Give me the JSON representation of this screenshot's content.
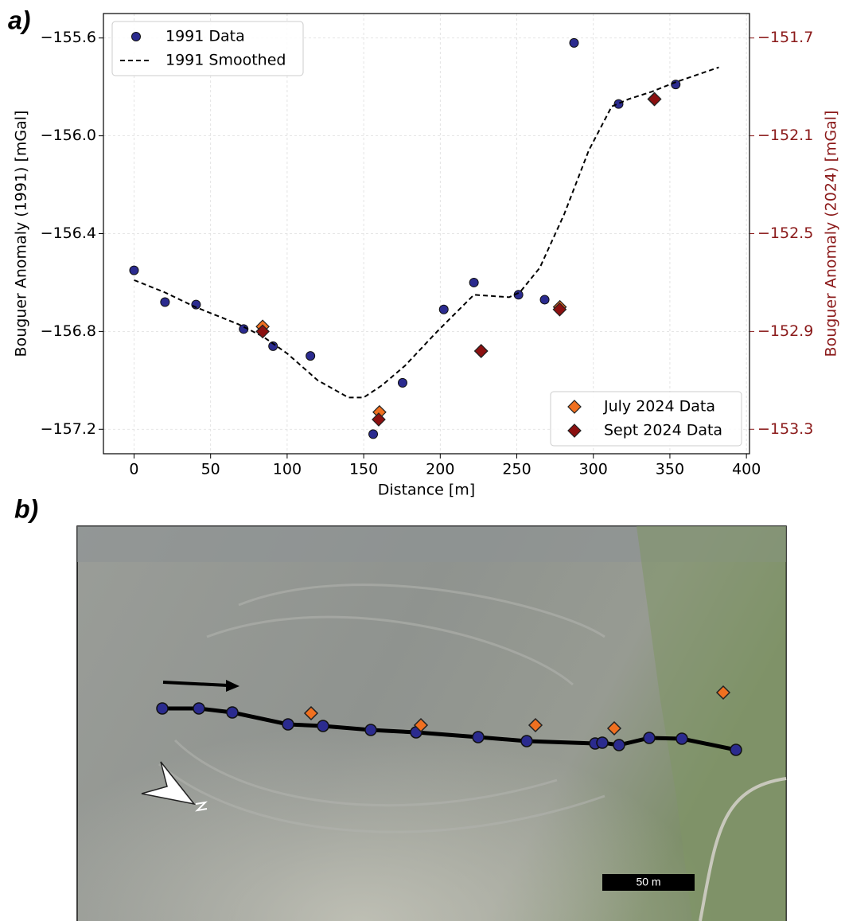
{
  "chart_data": {
    "type": "scatter",
    "panel_label": "a)",
    "x_label": "Distance [m]",
    "y_label": "Bouguer Anomaly (1991) [mGal]",
    "y2_label": "Bouguer Anomaly (2024) [mGal]",
    "y2_color": "#8b1a1a",
    "xlim": [
      -20,
      402
    ],
    "ylim": [
      -157.3,
      -155.5
    ],
    "y2lim": [
      -153.4,
      -151.6
    ],
    "xticks": [
      0,
      50,
      100,
      150,
      200,
      250,
      300,
      350,
      400
    ],
    "yticks": [
      {
        "value": -155.6,
        "label": "−155.6"
      },
      {
        "value": -156.0,
        "label": "−156.0"
      },
      {
        "value": -156.4,
        "label": "−156.4"
      },
      {
        "value": -156.8,
        "label": "−156.8"
      },
      {
        "value": -157.2,
        "label": "−157.2"
      }
    ],
    "y2ticks": [
      {
        "value": -151.7,
        "label": "−151.7"
      },
      {
        "value": -152.1,
        "label": "−152.1"
      },
      {
        "value": -152.5,
        "label": "−152.5"
      },
      {
        "value": -152.9,
        "label": "−152.9"
      },
      {
        "value": -153.3,
        "label": "−153.3"
      }
    ],
    "grid": true,
    "legend": "upper left",
    "legend2": "lower right",
    "series": [
      {
        "name": "1991 Data",
        "type": "scatter",
        "marker": "circle",
        "color": "#2b2b8f",
        "x": [
          0,
          20.2,
          40.5,
          71.6,
          90.8,
          115.2,
          156.2,
          175.4,
          202.3,
          222,
          251.1,
          268.2,
          287.4,
          316.5,
          353.8
        ],
        "values": [
          -156.55,
          -156.68,
          -156.69,
          -156.79,
          -156.86,
          -156.9,
          -157.22,
          -157.01,
          -156.71,
          -156.6,
          -156.65,
          -156.67,
          -155.62,
          -155.87,
          -155.79
        ]
      },
      {
        "name": "1991 Smoothed",
        "type": "line",
        "dash": true,
        "color": "#000000",
        "x": [
          0,
          20,
          40,
          68,
          84,
          100,
          120,
          140,
          150,
          162,
          177,
          198,
          222,
          245,
          252,
          265,
          281,
          297,
          312,
          323,
          338,
          354,
          382
        ],
        "values": [
          -156.59,
          -156.64,
          -156.7,
          -156.77,
          -156.82,
          -156.89,
          -157.0,
          -157.07,
          -157.07,
          -157.02,
          -156.94,
          -156.8,
          -156.65,
          -156.66,
          -156.64,
          -156.54,
          -156.32,
          -156.06,
          -155.88,
          -155.85,
          -155.82,
          -155.78,
          -155.72
        ]
      },
      {
        "name": "July 2024 Data",
        "type": "scatter",
        "marker": "diamond",
        "axis": "y2",
        "color": "#f07020",
        "x": [
          84,
          160.3,
          226.7,
          278.1,
          339.8
        ],
        "values": [
          -152.88,
          -153.23,
          -152.98,
          -152.8,
          -151.95
        ]
      },
      {
        "name": "Sept 2024 Data",
        "type": "scatter",
        "marker": "diamond",
        "axis": "y2",
        "color": "#8b1010",
        "x": [
          84,
          159.8,
          226.7,
          278,
          340
        ],
        "values": [
          -152.9,
          -153.26,
          -152.98,
          -152.81,
          -151.95
        ]
      }
    ]
  },
  "photo": {
    "panel_label": "b)",
    "scale_bar": "50 m"
  }
}
